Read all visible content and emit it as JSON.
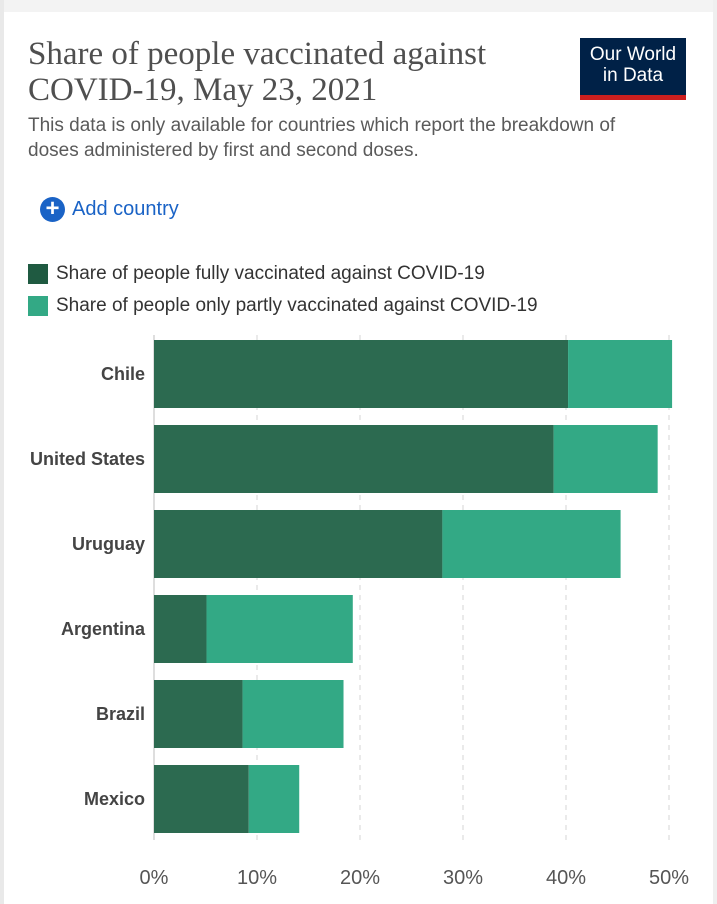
{
  "header": {
    "title": "Share of people vaccinated against COVID-19, May 23, 2021",
    "subtitle": "This data is only available for countries which report the breakdown of doses administered by first and second doses.",
    "logo_line1": "Our World",
    "logo_line2": "in Data",
    "add_country_label": "Add country",
    "add_country_icon": "plus-circle-icon"
  },
  "colors": {
    "fully": "#2c6a50",
    "partly": "#33a985",
    "logo_bg": "#002147",
    "logo_accent": "#cc1f1f",
    "link": "#1a63c6"
  },
  "chart_data": {
    "type": "bar",
    "orientation": "horizontal",
    "stacked": true,
    "title": "Share of people vaccinated against COVID-19, May 23, 2021",
    "categories": [
      "Chile",
      "United States",
      "Uruguay",
      "Argentina",
      "Brazil",
      "Mexico"
    ],
    "series": [
      {
        "name": "Share of people fully vaccinated against COVID-19",
        "values": [
          40.2,
          38.8,
          28.0,
          5.1,
          8.6,
          9.2
        ]
      },
      {
        "name": "Share of people only partly vaccinated against COVID-19",
        "values": [
          10.1,
          10.1,
          17.3,
          14.2,
          9.8,
          4.9
        ]
      }
    ],
    "xlim": [
      0,
      50
    ],
    "xticks": [
      "0%",
      "10%",
      "20%",
      "30%",
      "40%",
      "50%"
    ],
    "grid": true,
    "legend": "top-left"
  }
}
